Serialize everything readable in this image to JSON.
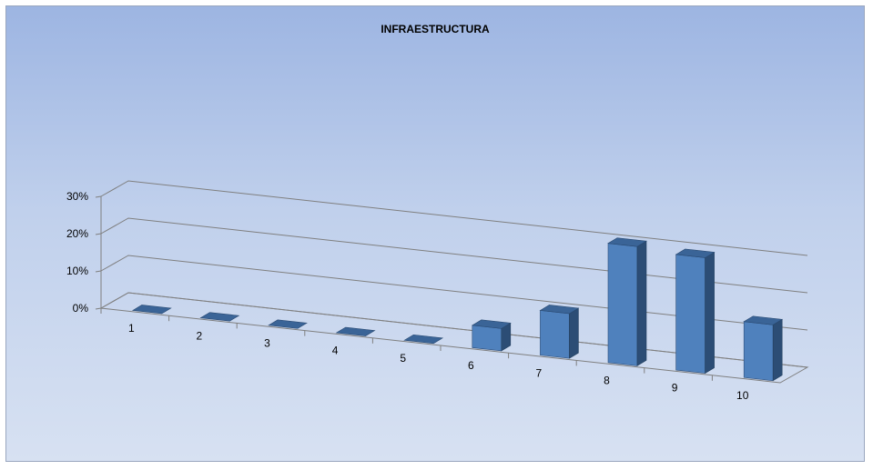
{
  "chart_data": {
    "type": "bar",
    "title": "INFRAESTRUCTURA",
    "categories": [
      "1",
      "2",
      "3",
      "4",
      "5",
      "6",
      "7",
      "8",
      "9",
      "10"
    ],
    "values": [
      0,
      0,
      0,
      0,
      0,
      6,
      12,
      32,
      31,
      15
    ],
    "y_ticks": [
      "0%",
      "10%",
      "20%",
      "30%"
    ],
    "ylim": [
      0,
      30
    ],
    "unit": "%",
    "grid": true,
    "colors": {
      "bar_front": "#4f81bd",
      "bar_side": "#2c4d75",
      "bar_top": "#3a6497"
    }
  }
}
